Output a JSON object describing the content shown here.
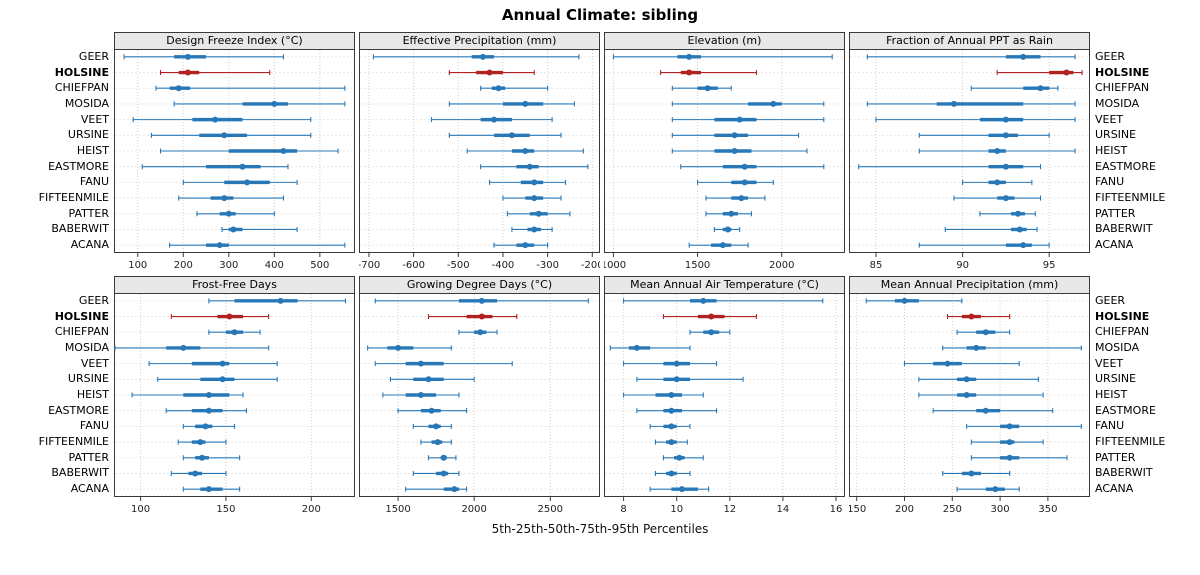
{
  "chart_data": {
    "type": "trellis-percentile-whisker",
    "title": "Annual Climate: sibling",
    "caption": "5th-25th-50th-75th-95th Percentiles",
    "percentiles": [
      5,
      25,
      50,
      75,
      95
    ],
    "stations": [
      "GEER",
      "HOLSINE",
      "CHIEFPAN",
      "MOSIDA",
      "VEET",
      "URSINE",
      "HEIST",
      "EASTMORE",
      "FANU",
      "FIFTEENMILE",
      "PATTER",
      "BABERWIT",
      "ACANA"
    ],
    "highlight_station": "HOLSINE",
    "colors": {
      "normal": "#2878b8",
      "highlight": "#b22222",
      "grid": "#c9c9c9",
      "border": "#3a3a3a",
      "strip_bg": "#e8e8e8"
    },
    "layout": {
      "rows": 2,
      "cols": 4,
      "grid": "dotted",
      "legend": "none"
    },
    "panels": [
      {
        "title": "Design Freeze Index (°C)",
        "xlim": [
          50,
          575
        ],
        "ticks": [
          100,
          200,
          300,
          400,
          500
        ],
        "series": [
          [
            70,
            180,
            210,
            250,
            420
          ],
          [
            150,
            190,
            210,
            235,
            390
          ],
          [
            140,
            170,
            190,
            215,
            555
          ],
          [
            180,
            330,
            400,
            430,
            555
          ],
          [
            90,
            220,
            270,
            330,
            480
          ],
          [
            130,
            235,
            290,
            340,
            480
          ],
          [
            150,
            300,
            420,
            450,
            540
          ],
          [
            110,
            250,
            330,
            370,
            430
          ],
          [
            200,
            290,
            340,
            390,
            450
          ],
          [
            190,
            260,
            290,
            310,
            420
          ],
          [
            230,
            280,
            300,
            315,
            400
          ],
          [
            285,
            300,
            310,
            330,
            450
          ],
          [
            170,
            250,
            280,
            300,
            555
          ]
        ]
      },
      {
        "title": "Effective Precipitation (mm)",
        "xlim": [
          -720,
          -185
        ],
        "ticks": [
          -700,
          -600,
          -500,
          -400,
          -300,
          -200
        ],
        "series": [
          [
            -690,
            -470,
            -445,
            -420,
            -230
          ],
          [
            -520,
            -460,
            -430,
            -400,
            -330
          ],
          [
            -450,
            -425,
            -410,
            -395,
            -300
          ],
          [
            -520,
            -400,
            -350,
            -310,
            -240
          ],
          [
            -560,
            -450,
            -420,
            -380,
            -290
          ],
          [
            -520,
            -420,
            -380,
            -340,
            -270
          ],
          [
            -480,
            -380,
            -350,
            -330,
            -220
          ],
          [
            -450,
            -370,
            -340,
            -320,
            -210
          ],
          [
            -430,
            -360,
            -330,
            -310,
            -260
          ],
          [
            -400,
            -350,
            -330,
            -310,
            -270
          ],
          [
            -390,
            -340,
            -320,
            -300,
            -250
          ],
          [
            -380,
            -345,
            -330,
            -315,
            -290
          ],
          [
            -420,
            -370,
            -350,
            -330,
            -300
          ]
        ]
      },
      {
        "title": "Elevation (m)",
        "xlim": [
          950,
          2370
        ],
        "ticks": [
          1000,
          1500,
          2000
        ],
        "series": [
          [
            1000,
            1380,
            1450,
            1520,
            2300
          ],
          [
            1280,
            1400,
            1450,
            1520,
            1850
          ],
          [
            1350,
            1500,
            1560,
            1620,
            1700
          ],
          [
            1350,
            1800,
            1950,
            2000,
            2250
          ],
          [
            1350,
            1600,
            1750,
            1850,
            2250
          ],
          [
            1350,
            1600,
            1720,
            1800,
            2100
          ],
          [
            1350,
            1600,
            1720,
            1820,
            2150
          ],
          [
            1400,
            1650,
            1780,
            1850,
            2250
          ],
          [
            1500,
            1700,
            1780,
            1850,
            1950
          ],
          [
            1550,
            1700,
            1760,
            1800,
            1900
          ],
          [
            1550,
            1650,
            1700,
            1740,
            1820
          ],
          [
            1600,
            1650,
            1680,
            1700,
            1750
          ],
          [
            1450,
            1580,
            1650,
            1700,
            1800
          ]
        ]
      },
      {
        "title": "Fraction of Annual PPT as Rain",
        "xlim": [
          83.5,
          97.3
        ],
        "ticks": [
          85,
          90,
          95
        ],
        "series": [
          [
            84.5,
            92.5,
            93.5,
            94.5,
            96.5
          ],
          [
            92,
            95,
            96,
            96.4,
            96.9
          ],
          [
            90.5,
            93.5,
            94.5,
            95,
            95.5
          ],
          [
            84.5,
            88.5,
            89.5,
            93.5,
            96.5
          ],
          [
            85,
            91,
            92.5,
            93.5,
            96.5
          ],
          [
            87.5,
            91.5,
            92.5,
            93.2,
            95
          ],
          [
            87.5,
            91.5,
            92,
            92.5,
            96.5
          ],
          [
            84,
            91.5,
            92.5,
            93.5,
            94.5
          ],
          [
            90,
            91.5,
            92,
            92.5,
            94
          ],
          [
            89.5,
            92,
            92.5,
            93,
            94.5
          ],
          [
            91,
            92.8,
            93.2,
            93.6,
            94.2
          ],
          [
            89,
            92.8,
            93.3,
            93.7,
            94.3
          ],
          [
            87.5,
            92.5,
            93.5,
            94,
            95
          ]
        ]
      },
      {
        "title": "Frost-Free Days",
        "xlim": [
          85,
          225
        ],
        "ticks": [
          100,
          150,
          200
        ],
        "series": [
          [
            140,
            155,
            182,
            192,
            220
          ],
          [
            118,
            145,
            152,
            160,
            175
          ],
          [
            140,
            150,
            155,
            160,
            170
          ],
          [
            85,
            115,
            125,
            135,
            175
          ],
          [
            105,
            130,
            148,
            152,
            180
          ],
          [
            110,
            135,
            148,
            155,
            180
          ],
          [
            95,
            125,
            140,
            152,
            160
          ],
          [
            115,
            130,
            140,
            148,
            162
          ],
          [
            125,
            132,
            138,
            142,
            155
          ],
          [
            122,
            130,
            135,
            138,
            150
          ],
          [
            125,
            132,
            136,
            140,
            158
          ],
          [
            118,
            128,
            132,
            136,
            150
          ],
          [
            125,
            135,
            140,
            148,
            158
          ]
        ]
      },
      {
        "title": "Growing Degree Days (°C)",
        "xlim": [
          1250,
          2820
        ],
        "ticks": [
          1500,
          2000,
          2500
        ],
        "series": [
          [
            1350,
            1900,
            2050,
            2150,
            2750
          ],
          [
            1700,
            1950,
            2050,
            2120,
            2280
          ],
          [
            1900,
            2000,
            2040,
            2080,
            2150
          ],
          [
            1300,
            1430,
            1500,
            1600,
            1850
          ],
          [
            1350,
            1550,
            1650,
            1800,
            2250
          ],
          [
            1450,
            1600,
            1700,
            1800,
            2000
          ],
          [
            1400,
            1550,
            1650,
            1750,
            1900
          ],
          [
            1500,
            1650,
            1720,
            1780,
            1950
          ],
          [
            1600,
            1700,
            1750,
            1780,
            1850
          ],
          [
            1650,
            1720,
            1760,
            1790,
            1850
          ],
          [
            1700,
            1780,
            1800,
            1820,
            1880
          ],
          [
            1600,
            1750,
            1800,
            1830,
            1900
          ],
          [
            1550,
            1800,
            1870,
            1900,
            1950
          ]
        ]
      },
      {
        "title": "Mean Annual Air Temperature (°C)",
        "xlim": [
          7.3,
          16.3
        ],
        "ticks": [
          8,
          10,
          12,
          14,
          16
        ],
        "series": [
          [
            8,
            10.5,
            11,
            11.5,
            15.5
          ],
          [
            9.5,
            10.8,
            11.3,
            11.8,
            13
          ],
          [
            10.5,
            11,
            11.3,
            11.6,
            12
          ],
          [
            7.5,
            8.2,
            8.5,
            9,
            10.5
          ],
          [
            8,
            9.5,
            10,
            10.5,
            11.5
          ],
          [
            8.5,
            9.5,
            10,
            10.5,
            12.5
          ],
          [
            8,
            9.2,
            9.8,
            10.2,
            11
          ],
          [
            8.5,
            9.5,
            9.8,
            10.2,
            11.5
          ],
          [
            9,
            9.5,
            9.8,
            10,
            10.5
          ],
          [
            9.2,
            9.6,
            9.8,
            10,
            10.4
          ],
          [
            9.5,
            9.9,
            10.1,
            10.3,
            11
          ],
          [
            9.2,
            9.6,
            9.8,
            10,
            10.5
          ],
          [
            9,
            9.8,
            10.2,
            10.8,
            11.2
          ]
        ]
      },
      {
        "title": "Mean Annual Precipitation (mm)",
        "xlim": [
          143,
          393
        ],
        "ticks": [
          150,
          200,
          250,
          300,
          350
        ],
        "series": [
          [
            160,
            190,
            200,
            215,
            260
          ],
          [
            245,
            260,
            270,
            280,
            310
          ],
          [
            255,
            275,
            285,
            295,
            310
          ],
          [
            240,
            265,
            275,
            285,
            385
          ],
          [
            200,
            230,
            245,
            260,
            320
          ],
          [
            215,
            255,
            265,
            275,
            340
          ],
          [
            215,
            255,
            265,
            275,
            345
          ],
          [
            230,
            275,
            285,
            300,
            355
          ],
          [
            265,
            300,
            310,
            320,
            385
          ],
          [
            270,
            300,
            310,
            315,
            345
          ],
          [
            270,
            300,
            310,
            320,
            370
          ],
          [
            240,
            260,
            270,
            280,
            310
          ],
          [
            255,
            285,
            295,
            305,
            320
          ]
        ]
      }
    ]
  }
}
